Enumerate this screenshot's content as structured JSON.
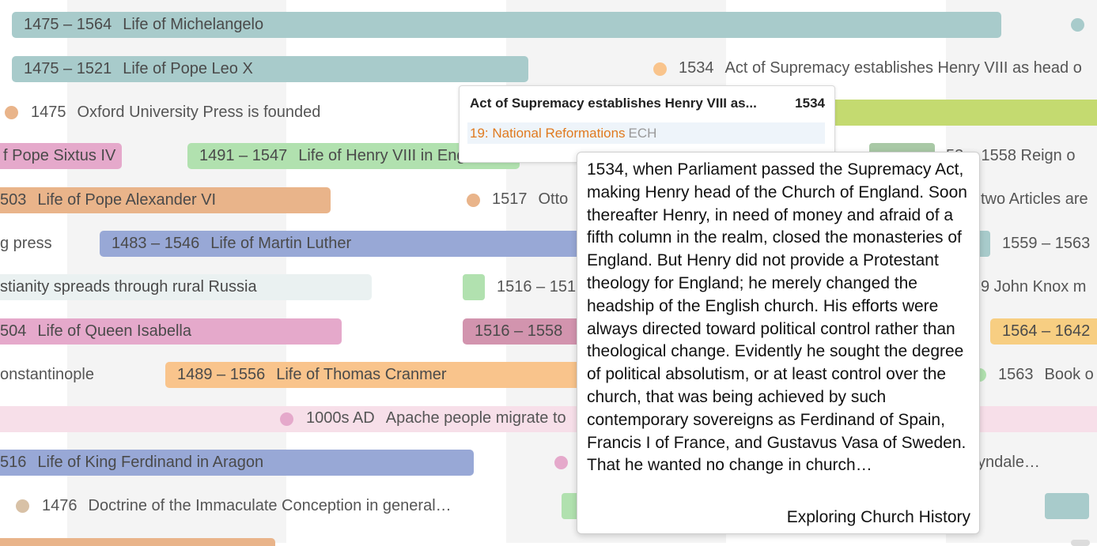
{
  "colors": {
    "teal": "#a8cbcb",
    "pink": "#e5a9cb",
    "orange": "#e9b48a",
    "light_orange": "#f9c48c",
    "green_bar": "#b1e1af",
    "blue": "#98a8d6",
    "lime": "#c4da70",
    "mauve": "#d294ae",
    "yellow": "#f7ce82",
    "tan_dot": "#d8c1a6",
    "light_pink_band": "#f7dfe9",
    "tag_orange": "#e07a1f"
  },
  "timeline": {
    "row1_bar": {
      "years": "1475 – 1564",
      "label": "Life of Michelangelo"
    },
    "row2_bar": {
      "years": "1475 – 1521",
      "label": "Life of Pope Leo X"
    },
    "row2_event": {
      "year": "1534",
      "label": "Act of Supremacy establishes Henry VIII as head o"
    },
    "row3_event": {
      "year": "1475",
      "label": "Oxford University Press is founded"
    },
    "row4_bar_left": {
      "label": "f Pope Sixtus IV"
    },
    "row4_bar_mid": {
      "years": "1491 – 1547",
      "label": "Life of Henry VIII in Eng"
    },
    "row4_right": {
      "label": "53 – 1558   Reign o"
    },
    "row5_bar": {
      "years": "503",
      "label": "Life of Pope Alexander VI"
    },
    "row5_event": {
      "year": "1517",
      "label": "Otto"
    },
    "row5_right": {
      "label": "two Articles are"
    },
    "row6_left": {
      "label": "g press"
    },
    "row6_bar": {
      "years": "1483 – 1546",
      "label": "Life of Martin Luther"
    },
    "row6_right": {
      "label": "1559 – 1563"
    },
    "row7_left": {
      "label": "stianity spreads through rural Russia"
    },
    "row7_mid": {
      "label": "1516 – 151"
    },
    "row7_right": {
      "label": "9   John Knox m"
    },
    "row8_bar": {
      "years": "504",
      "label": "Life of Queen Isabella"
    },
    "row8_bar_mid": {
      "label": "1516 – 1558"
    },
    "row8_bar_right": {
      "label": "1564 – 1642"
    },
    "row9_left": {
      "label": "onstantinople"
    },
    "row9_bar": {
      "years": "1489 – 1556",
      "label": "Life of Thomas Cranmer"
    },
    "row9_right": {
      "year": "1563",
      "label": "Book o"
    },
    "row10_event": {
      "year": "1000s AD",
      "label": "Apache people migrate to"
    },
    "row11_bar": {
      "years": "516",
      "label": "Life of King Ferdinand in Aragon"
    },
    "row11_right": {
      "label": "yndale…"
    },
    "row12_event": {
      "year": "1476",
      "label": "Doctrine of the Immaculate Conception in general…"
    }
  },
  "card": {
    "title": "Act of Supremacy establishes Henry VIII as...",
    "year": "1534",
    "tag": "19: National Reformations",
    "source_abbr": "ECH"
  },
  "popup": {
    "text": "1534, when Parliament passed the Supremacy Act, making Henry head of the Church of England. Soon thereafter Henry, in need of money and afraid of a fifth column in the realm, closed the monasteries of England. But Henry did not provide a Protestant theology for England; he merely changed the headship of the English church. His efforts were always directed toward political control rather than theological change. Evidently he sought the degree of political absolutism, or at least control over the church, that was being achieved by such contemporary sovereigns as Ferdinand of Spain, Francis I of France, and Gustavus Vasa of Sweden. That he wanted no change in church…",
    "source": "Exploring Church History"
  }
}
